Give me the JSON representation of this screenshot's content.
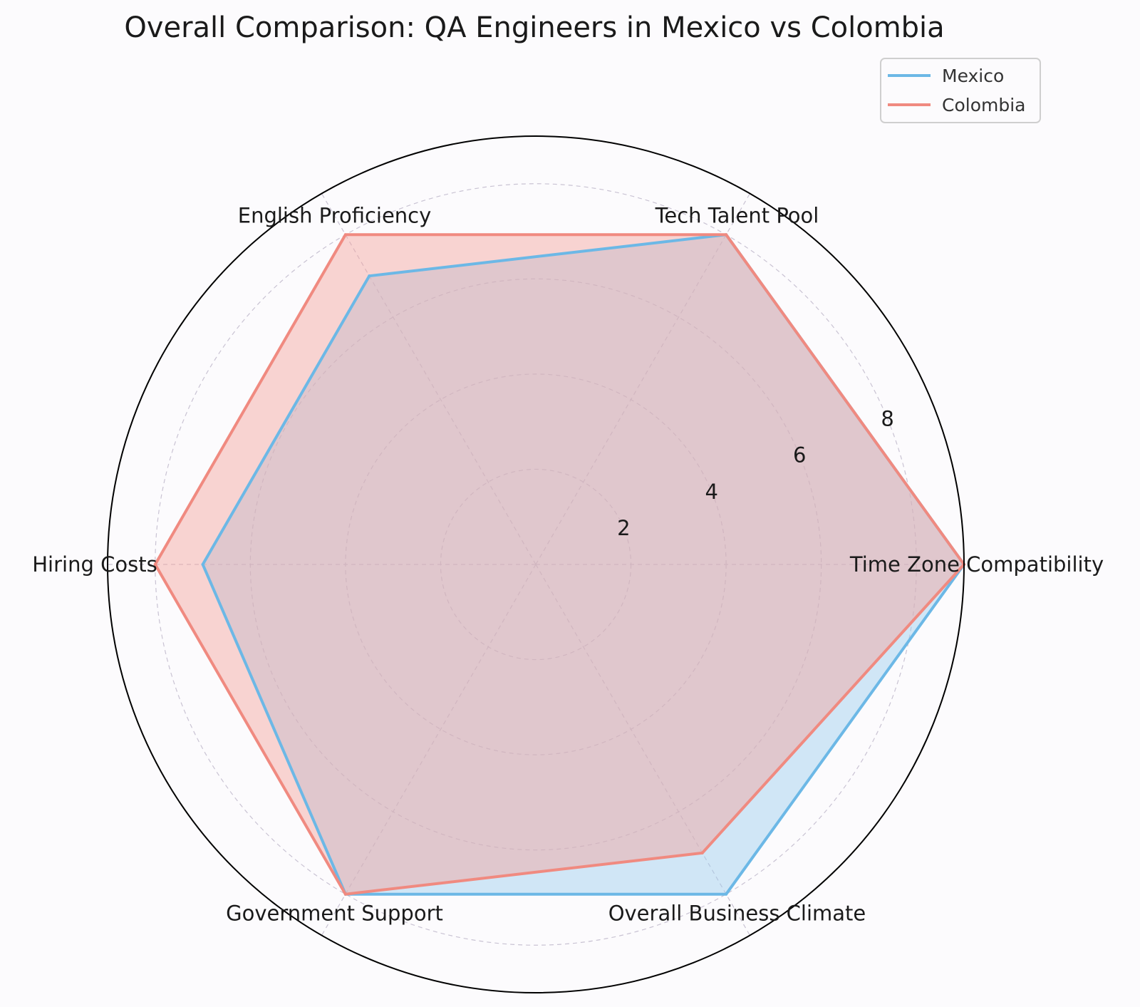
{
  "chart_data": {
    "type": "radar",
    "title": "Overall Comparison: QA Engineers in Mexico vs Colombia",
    "categories": [
      "Time Zone Compatibility",
      "Tech Talent Pool",
      "English Proficiency",
      "Hiring Costs",
      "Government Support",
      "Overall Business Climate"
    ],
    "series": [
      {
        "name": "Mexico",
        "values": [
          9,
          8,
          7,
          7,
          8,
          8
        ],
        "color": "#6cb8e6",
        "fill": "#9ccbed"
      },
      {
        "name": "Colombia",
        "values": [
          9,
          8,
          8,
          8,
          8,
          7
        ],
        "color": "#f08a80",
        "fill": "#f3a29b"
      }
    ],
    "radial_ticks": [
      2,
      4,
      6,
      8
    ],
    "rlim": [
      0,
      9
    ],
    "grid": true,
    "legend_position": "top-right"
  }
}
